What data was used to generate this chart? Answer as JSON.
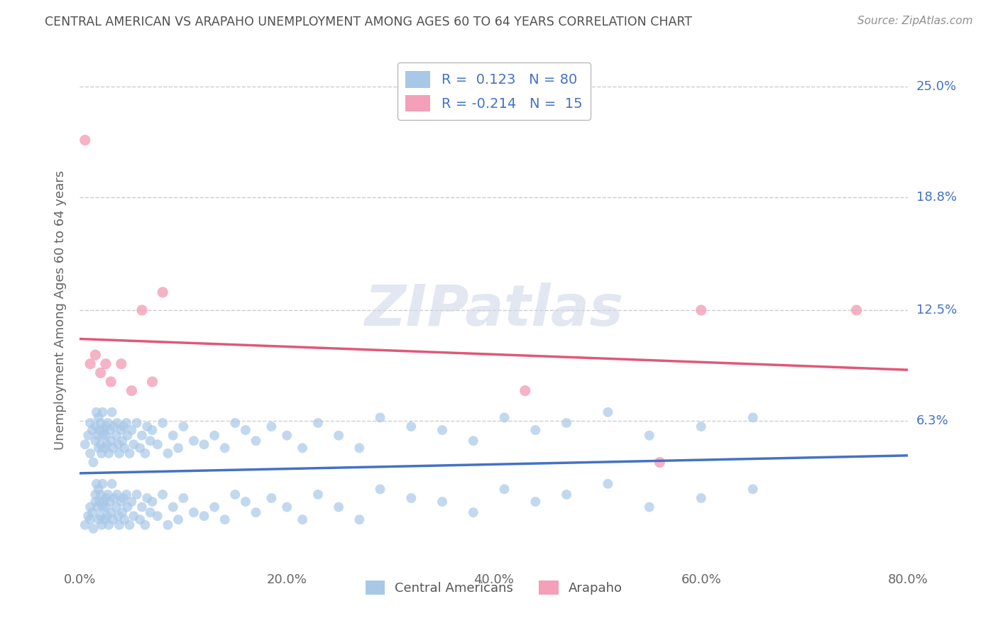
{
  "title": "CENTRAL AMERICAN VS ARAPAHO UNEMPLOYMENT AMONG AGES 60 TO 64 YEARS CORRELATION CHART",
  "source": "Source: ZipAtlas.com",
  "ylabel": "Unemployment Among Ages 60 to 64 years",
  "xmin": 0.0,
  "xmax": 0.8,
  "ymin": -0.02,
  "ymax": 0.27,
  "yticks": [
    0.063,
    0.125,
    0.188,
    0.25
  ],
  "ytick_labels": [
    "6.3%",
    "12.5%",
    "18.8%",
    "25.0%"
  ],
  "xtick_labels": [
    "0.0%",
    "20.0%",
    "40.0%",
    "60.0%",
    "80.0%"
  ],
  "xticks": [
    0.0,
    0.2,
    0.4,
    0.6,
    0.8
  ],
  "grid_color": "#cccccc",
  "background_color": "#ffffff",
  "legend_R1": "0.123",
  "legend_N1": "80",
  "legend_R2": "-0.214",
  "legend_N2": "15",
  "color_blue": "#a8c8e8",
  "color_pink": "#f4a0b8",
  "line_color_blue": "#4472c4",
  "line_color_pink": "#e05878",
  "title_color": "#505050",
  "source_color": "#909090",
  "legend_text_color": "#4472c4",
  "ca_x": [
    0.005,
    0.008,
    0.01,
    0.01,
    0.012,
    0.013,
    0.015,
    0.015,
    0.016,
    0.017,
    0.018,
    0.018,
    0.019,
    0.02,
    0.02,
    0.021,
    0.022,
    0.022,
    0.023,
    0.024,
    0.025,
    0.025,
    0.026,
    0.027,
    0.028,
    0.029,
    0.03,
    0.031,
    0.032,
    0.033,
    0.035,
    0.036,
    0.037,
    0.038,
    0.04,
    0.041,
    0.042,
    0.043,
    0.045,
    0.046,
    0.048,
    0.05,
    0.052,
    0.055,
    0.058,
    0.06,
    0.063,
    0.065,
    0.068,
    0.07,
    0.075,
    0.08,
    0.085,
    0.09,
    0.095,
    0.1,
    0.11,
    0.12,
    0.13,
    0.14,
    0.15,
    0.16,
    0.17,
    0.185,
    0.2,
    0.215,
    0.23,
    0.25,
    0.27,
    0.29,
    0.32,
    0.35,
    0.38,
    0.41,
    0.44,
    0.47,
    0.51,
    0.55,
    0.6,
    0.65
  ],
  "ca_y": [
    0.05,
    0.055,
    0.045,
    0.062,
    0.058,
    0.04,
    0.052,
    0.06,
    0.068,
    0.055,
    0.048,
    0.065,
    0.058,
    0.05,
    0.062,
    0.045,
    0.055,
    0.068,
    0.058,
    0.048,
    0.06,
    0.055,
    0.05,
    0.062,
    0.045,
    0.058,
    0.052,
    0.068,
    0.048,
    0.06,
    0.055,
    0.062,
    0.05,
    0.045,
    0.058,
    0.052,
    0.06,
    0.048,
    0.062,
    0.055,
    0.045,
    0.058,
    0.05,
    0.062,
    0.048,
    0.055,
    0.045,
    0.06,
    0.052,
    0.058,
    0.05,
    0.062,
    0.045,
    0.055,
    0.048,
    0.06,
    0.052,
    0.05,
    0.055,
    0.048,
    0.062,
    0.058,
    0.052,
    0.06,
    0.055,
    0.048,
    0.062,
    0.055,
    0.048,
    0.065,
    0.06,
    0.058,
    0.052,
    0.065,
    0.058,
    0.062,
    0.068,
    0.055,
    0.06,
    0.065
  ],
  "ca_y_low": [
    0.005,
    0.01,
    0.008,
    0.015,
    0.012,
    0.003,
    0.018,
    0.022,
    0.028,
    0.015,
    0.008,
    0.025,
    0.018,
    0.01,
    0.022,
    0.005,
    0.015,
    0.028,
    0.018,
    0.008,
    0.02,
    0.015,
    0.01,
    0.022,
    0.005,
    0.018,
    0.012,
    0.028,
    0.008,
    0.02,
    0.015,
    0.022,
    0.01,
    0.005,
    0.018,
    0.012,
    0.02,
    0.008,
    0.022,
    0.015,
    0.005,
    0.018,
    0.01,
    0.022,
    0.008,
    0.015,
    0.005,
    0.02,
    0.012,
    0.018,
    0.01,
    0.022,
    0.005,
    0.015,
    0.008,
    0.02,
    0.012,
    0.01,
    0.015,
    0.008,
    0.022,
    0.018,
    0.012,
    0.02,
    0.015,
    0.008,
    0.022,
    0.015,
    0.008,
    0.025,
    0.02,
    0.018,
    0.012,
    0.025,
    0.018,
    0.022,
    0.028,
    0.015,
    0.02,
    0.025
  ],
  "ar_x": [
    0.005,
    0.01,
    0.015,
    0.02,
    0.025,
    0.03,
    0.04,
    0.05,
    0.06,
    0.07,
    0.08,
    0.43,
    0.56,
    0.6,
    0.75
  ],
  "ar_y": [
    0.22,
    0.095,
    0.1,
    0.09,
    0.095,
    0.085,
    0.095,
    0.08,
    0.125,
    0.085,
    0.135,
    0.08,
    0.04,
    0.125,
    0.125
  ],
  "bottom_label1": "Central Americans",
  "bottom_label2": "Arapaho"
}
